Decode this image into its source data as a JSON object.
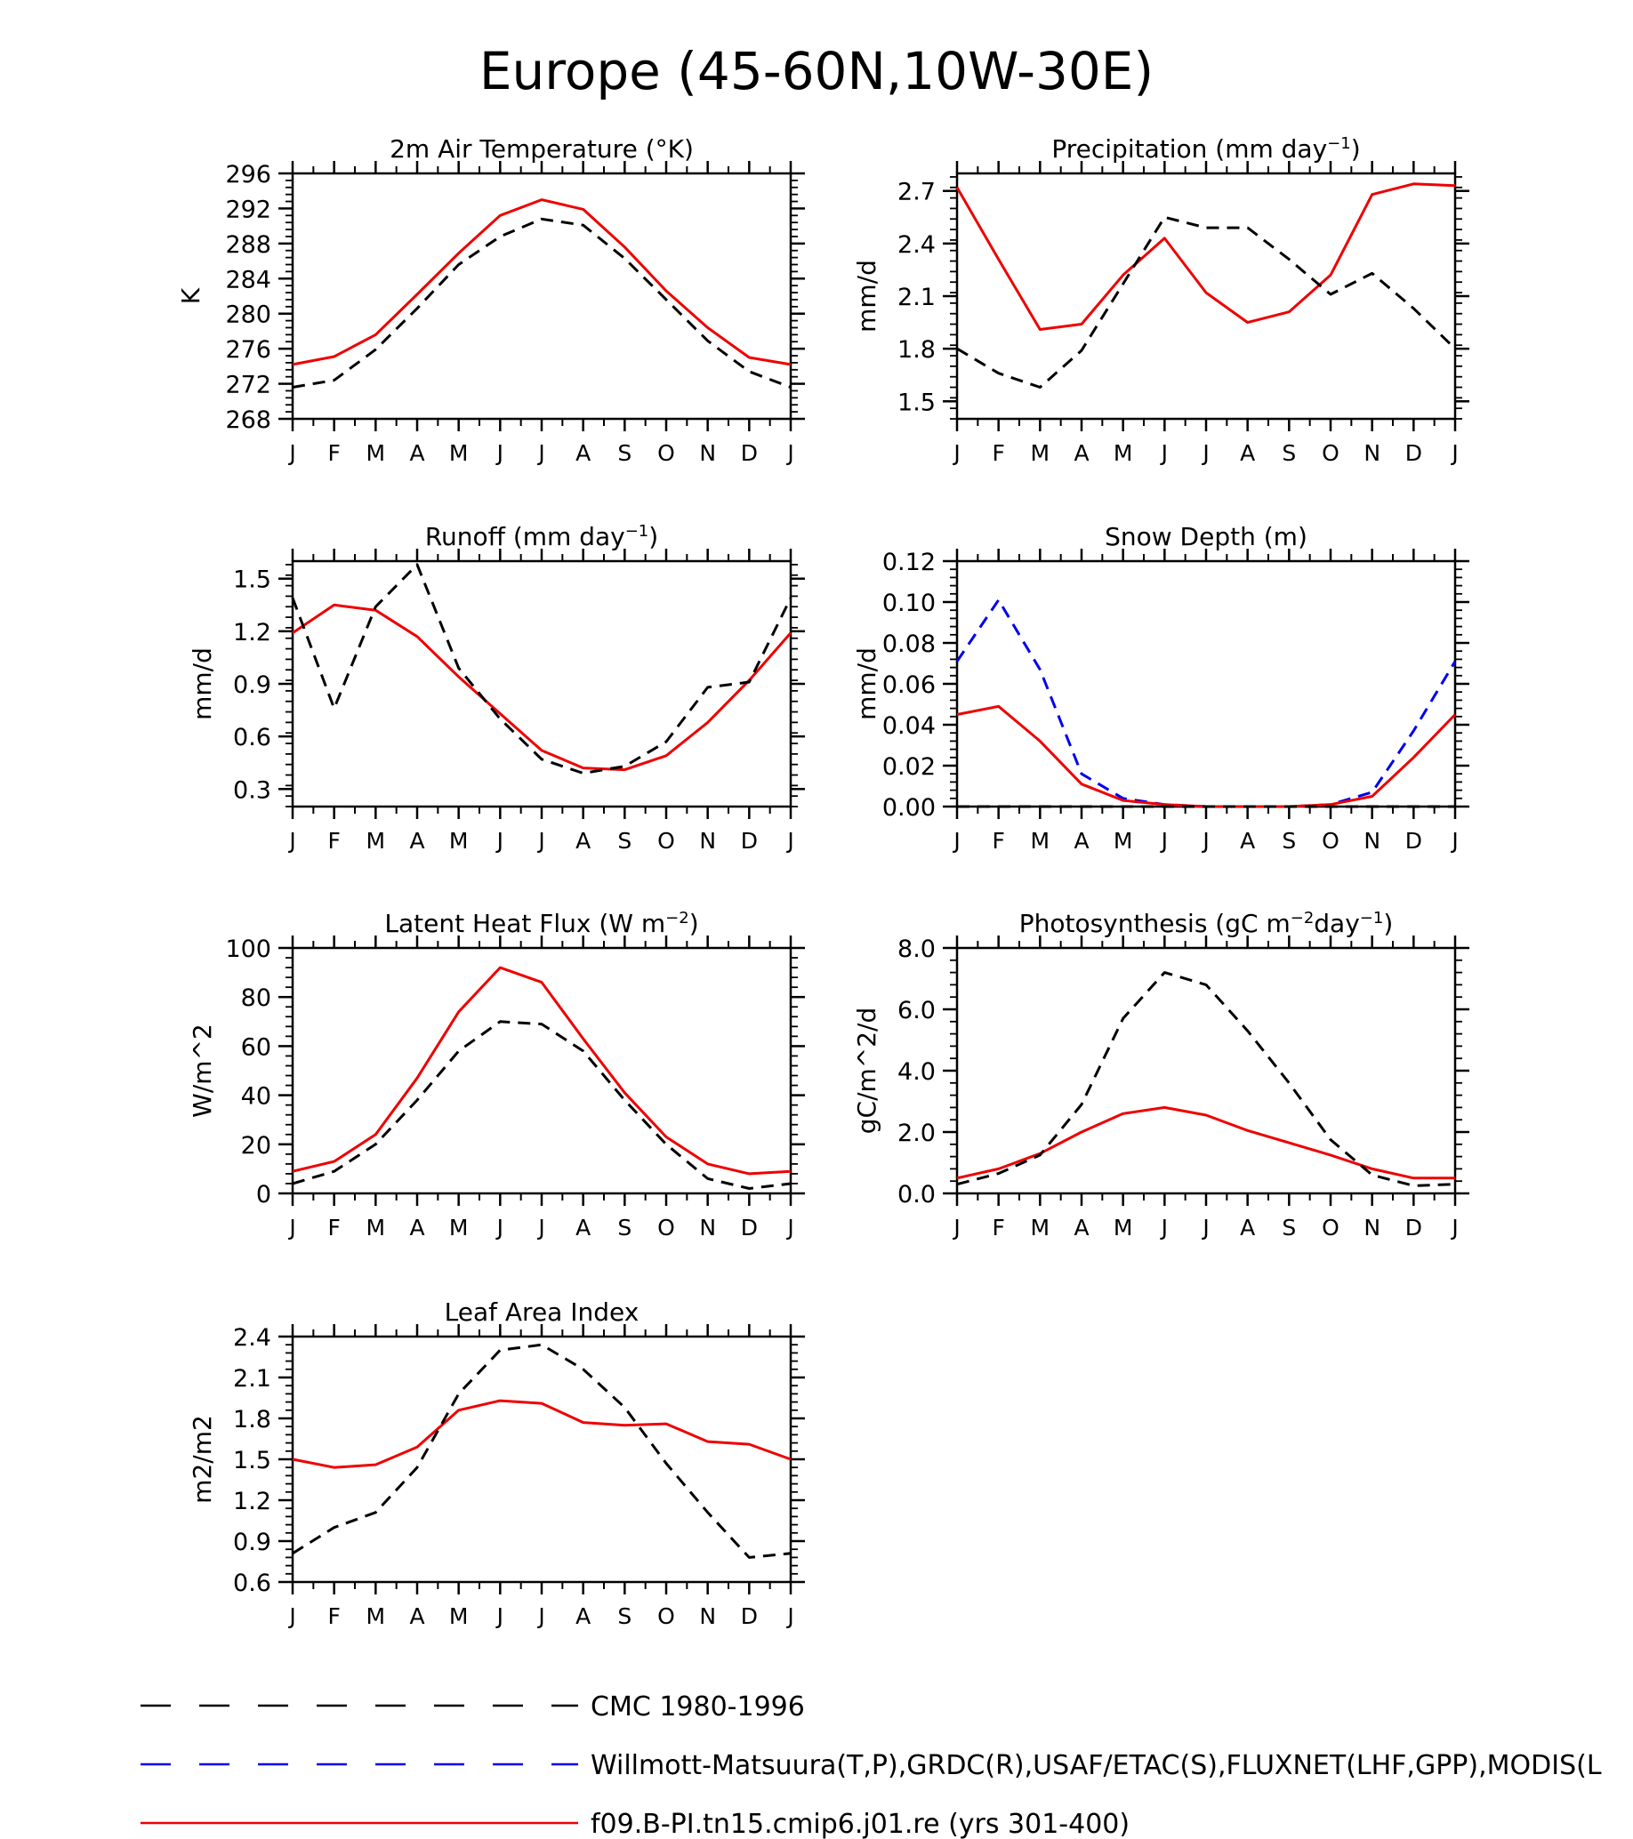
{
  "page": {
    "title": "Europe (45-60N,10W-30E)"
  },
  "colors": {
    "observed_black": "#000000",
    "observed_blue": "#0000ee",
    "model_red": "#ee0000"
  },
  "legend": [
    {
      "label": "CMC 1980-1996",
      "color": "#000000",
      "style": "dashed"
    },
    {
      "label": "Willmott-Matsuura(T,P),GRDC(R),USAF/ETAC(S),FLUXNET(LHF,GPP),MODIS(L",
      "color": "#0000ee",
      "style": "dashed"
    },
    {
      "label": "f09.B-PI.tn15.cmip6.j01.re (yrs 301-400)",
      "color": "#ee0000",
      "style": "solid"
    }
  ],
  "chart_data": [
    {
      "type": "line",
      "title": "2m Air Temperature (°K)",
      "ylabel": "K",
      "categories": [
        "J",
        "F",
        "M",
        "A",
        "M",
        "J",
        "J",
        "A",
        "S",
        "O",
        "N",
        "D",
        "J"
      ],
      "ylim": [
        268,
        296
      ],
      "yticks": [
        268,
        272,
        276,
        280,
        284,
        288,
        292,
        296
      ],
      "tick_labels": [
        "268",
        "272",
        "276",
        "280",
        "284",
        "288",
        "292",
        "296"
      ],
      "series": [
        {
          "style": "red",
          "values": [
            274.2,
            275.1,
            277.6,
            282.2,
            286.9,
            291.2,
            293.0,
            291.9,
            287.6,
            282.6,
            278.4,
            275.0,
            274.2
          ]
        },
        {
          "style": "black",
          "values": [
            271.6,
            272.4,
            275.9,
            280.6,
            285.6,
            288.8,
            290.8,
            290.1,
            286.3,
            281.6,
            276.9,
            273.4,
            271.6
          ]
        }
      ]
    },
    {
      "type": "line",
      "title": "Precipitation (mm day-1)",
      "ylabel": "mm/d",
      "categories": [
        "J",
        "F",
        "M",
        "A",
        "M",
        "J",
        "J",
        "A",
        "S",
        "O",
        "N",
        "D",
        "J"
      ],
      "ylim": [
        1.4,
        2.8
      ],
      "yticks": [
        1.5,
        1.8,
        2.1,
        2.4,
        2.7
      ],
      "tick_labels": [
        "1.5",
        "1.8",
        "2.1",
        "2.4",
        "2.7"
      ],
      "series": [
        {
          "style": "red",
          "values": [
            2.72,
            2.31,
            1.91,
            1.94,
            2.22,
            2.43,
            2.12,
            1.95,
            2.01,
            2.22,
            2.68,
            2.74,
            2.73
          ]
        },
        {
          "style": "black",
          "values": [
            1.8,
            1.66,
            1.58,
            1.79,
            2.17,
            2.55,
            2.49,
            2.49,
            2.31,
            2.11,
            2.23,
            2.03,
            1.8
          ]
        }
      ]
    },
    {
      "type": "line",
      "title": "Runoff (mm day-1)",
      "ylabel": "mm/d",
      "categories": [
        "J",
        "F",
        "M",
        "A",
        "M",
        "J",
        "J",
        "A",
        "S",
        "O",
        "N",
        "D",
        "J"
      ],
      "ylim": [
        0.2,
        1.6
      ],
      "yticks": [
        0.3,
        0.6,
        0.9,
        1.2,
        1.5
      ],
      "tick_labels": [
        "0.3",
        "0.6",
        "0.9",
        "1.2",
        "1.5"
      ],
      "series": [
        {
          "style": "red",
          "values": [
            1.19,
            1.35,
            1.32,
            1.17,
            0.94,
            0.73,
            0.52,
            0.42,
            0.41,
            0.49,
            0.68,
            0.92,
            1.19
          ]
        },
        {
          "style": "black",
          "values": [
            1.39,
            0.76,
            1.34,
            1.58,
            0.99,
            0.7,
            0.47,
            0.39,
            0.43,
            0.57,
            0.88,
            0.91,
            1.39
          ]
        }
      ]
    },
    {
      "type": "line",
      "title": "Snow Depth (m)",
      "ylabel": "mm/d",
      "categories": [
        "J",
        "F",
        "M",
        "A",
        "M",
        "J",
        "J",
        "A",
        "S",
        "O",
        "N",
        "D",
        "J"
      ],
      "ylim": [
        0.0,
        0.12
      ],
      "yticks": [
        0.0,
        0.02,
        0.04,
        0.06,
        0.08,
        0.1,
        0.12
      ],
      "tick_labels": [
        "0.00",
        "0.02",
        "0.04",
        "0.06",
        "0.08",
        "0.10",
        "0.12"
      ],
      "series": [
        {
          "style": "blue",
          "values": [
            0.071,
            0.101,
            0.067,
            0.016,
            0.004,
            0.001,
            0.0,
            0.0,
            0.0,
            0.001,
            0.007,
            0.037,
            0.071
          ]
        },
        {
          "style": "red",
          "values": [
            0.045,
            0.049,
            0.032,
            0.011,
            0.003,
            0.001,
            0.0,
            0.0,
            0.0,
            0.001,
            0.005,
            0.024,
            0.045
          ]
        },
        {
          "style": "black",
          "values": [
            0,
            0,
            0,
            0,
            0,
            0,
            0,
            0,
            0,
            0,
            0,
            0,
            0
          ]
        }
      ]
    },
    {
      "type": "line",
      "title": "Latent Heat Flux (W m-2)",
      "ylabel": "W/m^2",
      "categories": [
        "J",
        "F",
        "M",
        "A",
        "M",
        "J",
        "J",
        "A",
        "S",
        "O",
        "N",
        "D",
        "J"
      ],
      "ylim": [
        0,
        100
      ],
      "yticks": [
        0,
        20,
        40,
        60,
        80,
        100
      ],
      "tick_labels": [
        "0",
        "20",
        "40",
        "60",
        "80",
        "100"
      ],
      "series": [
        {
          "style": "red",
          "values": [
            9,
            13,
            24,
            47,
            74,
            92,
            86,
            63,
            41,
            23,
            12,
            8,
            9
          ]
        },
        {
          "style": "black",
          "values": [
            4,
            9,
            20,
            38,
            58,
            70,
            69,
            58,
            38,
            20,
            6,
            2,
            4
          ]
        }
      ]
    },
    {
      "type": "line",
      "title": "Photosynthesis (gC m-2day-1)",
      "ylabel": "gC/m^2/d",
      "categories": [
        "J",
        "F",
        "M",
        "A",
        "M",
        "J",
        "J",
        "A",
        "S",
        "O",
        "N",
        "D",
        "J"
      ],
      "ylim": [
        0,
        8
      ],
      "yticks": [
        0,
        2,
        4,
        6,
        8
      ],
      "tick_labels": [
        "0.0",
        "2.0",
        "4.0",
        "6.0",
        "8.0"
      ],
      "series": [
        {
          "style": "red",
          "values": [
            0.5,
            0.8,
            1.3,
            2.0,
            2.6,
            2.8,
            2.55,
            2.05,
            1.65,
            1.25,
            0.8,
            0.5,
            0.5
          ]
        },
        {
          "style": "black",
          "values": [
            0.3,
            0.65,
            1.25,
            2.9,
            5.7,
            7.2,
            6.8,
            5.3,
            3.6,
            1.75,
            0.6,
            0.25,
            0.3
          ]
        }
      ]
    },
    {
      "type": "line",
      "title": "Leaf Area Index",
      "ylabel": "m2/m2",
      "categories": [
        "J",
        "F",
        "M",
        "A",
        "M",
        "J",
        "J",
        "A",
        "S",
        "O",
        "N",
        "D",
        "J"
      ],
      "ylim": [
        0.6,
        2.4
      ],
      "yticks": [
        0.6,
        0.9,
        1.2,
        1.5,
        1.8,
        2.1,
        2.4
      ],
      "tick_labels": [
        "0.6",
        "0.9",
        "1.2",
        "1.5",
        "1.8",
        "2.1",
        "2.4"
      ],
      "series": [
        {
          "style": "red",
          "values": [
            1.5,
            1.44,
            1.46,
            1.59,
            1.86,
            1.93,
            1.91,
            1.77,
            1.75,
            1.76,
            1.63,
            1.61,
            1.5
          ]
        },
        {
          "style": "black",
          "values": [
            0.81,
            1.0,
            1.11,
            1.44,
            1.98,
            2.3,
            2.34,
            2.16,
            1.88,
            1.47,
            1.11,
            0.78,
            0.81
          ]
        }
      ]
    }
  ]
}
